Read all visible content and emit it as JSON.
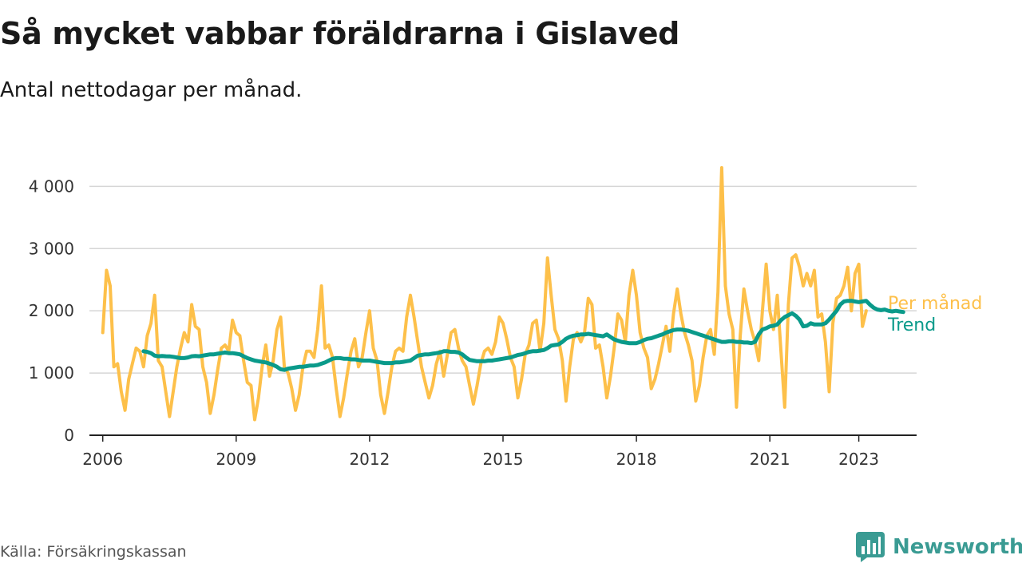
{
  "title": "Så mycket vabbar föräldrarna i Gislaved",
  "subtitle": "Antal nettodagar per månad.",
  "source": "Källa: Försäkringskassan",
  "brand": "Newsworthy",
  "colors": {
    "per_manad": "#fdc04a",
    "trend": "#0a9a8a",
    "brand": "#3a9b93",
    "grid": "#d6d6d6",
    "axis": "#222222"
  },
  "chart_data": {
    "type": "line",
    "title": "Så mycket vabbar föräldrarna i Gislaved",
    "subtitle": "Antal nettodagar per månad.",
    "xlabel": "",
    "ylabel": "",
    "xlim": [
      2005.7,
      2024.3
    ],
    "ylim": [
      0,
      4300
    ],
    "x_ticks": [
      2006,
      2009,
      2012,
      2015,
      2018,
      2021,
      2023
    ],
    "x_tick_labels": [
      "2006",
      "2009",
      "2012",
      "2015",
      "2018",
      "2021",
      "2023"
    ],
    "y_ticks": [
      0,
      1000,
      2000,
      3000,
      4000
    ],
    "y_tick_labels": [
      "0",
      "1 000",
      "2 000",
      "3 000",
      "4 000"
    ],
    "grid": true,
    "legend": "direct labels at line ends",
    "series": [
      {
        "name": "Per månad",
        "start": "2006-01",
        "values": [
          1650,
          2650,
          2400,
          1100,
          1150,
          700,
          400,
          900,
          1150,
          1400,
          1350,
          1100,
          1600,
          1800,
          2250,
          1200,
          1100,
          700,
          300,
          700,
          1100,
          1400,
          1650,
          1500,
          2100,
          1750,
          1700,
          1100,
          850,
          350,
          650,
          1050,
          1400,
          1450,
          1350,
          1850,
          1650,
          1600,
          1200,
          850,
          800,
          250,
          600,
          1100,
          1450,
          950,
          1200,
          1700,
          1900,
          1100,
          1000,
          750,
          400,
          650,
          1100,
          1350,
          1350,
          1250,
          1700,
          2400,
          1400,
          1450,
          1250,
          750,
          300,
          600,
          1000,
          1350,
          1550,
          1100,
          1250,
          1650,
          2000,
          1400,
          1200,
          650,
          350,
          700,
          1100,
          1350,
          1400,
          1350,
          1900,
          2250,
          1900,
          1500,
          1100,
          850,
          600,
          800,
          1150,
          1350,
          950,
          1300,
          1650,
          1700,
          1400,
          1200,
          1100,
          800,
          500,
          800,
          1150,
          1350,
          1400,
          1300,
          1500,
          1900,
          1800,
          1550,
          1250,
          1100,
          600,
          900,
          1300,
          1450,
          1800,
          1850,
          1350,
          1800,
          2850,
          2250,
          1700,
          1550,
          1200,
          550,
          1100,
          1550,
          1650,
          1500,
          1650,
          2200,
          2100,
          1400,
          1450,
          1100,
          600,
          950,
          1400,
          1950,
          1850,
          1500,
          2250,
          2650,
          2250,
          1650,
          1400,
          1250,
          750,
          900,
          1150,
          1450,
          1750,
          1350,
          1950,
          2350,
          1950,
          1650,
          1450,
          1200,
          550,
          800,
          1250,
          1600,
          1700,
          1300,
          2300,
          4300,
          2400,
          1950,
          1700,
          450,
          1600,
          2350,
          2000,
          1700,
          1500,
          1200,
          2000,
          2750,
          2000,
          1700,
          2250,
          1350,
          450,
          2100,
          2850,
          2900,
          2700,
          2400,
          2600,
          2400,
          2650,
          1900,
          1950,
          1500,
          700,
          1800,
          2200,
          2250,
          2400,
          2700,
          2000,
          2600,
          2750,
          1750,
          2000
        ]
      },
      {
        "name": "Trend",
        "start": "2006-12",
        "values": [
          1350,
          1340,
          1320,
          1280,
          1270,
          1275,
          1270,
          1268,
          1260,
          1250,
          1240,
          1240,
          1250,
          1270,
          1275,
          1270,
          1280,
          1290,
          1300,
          1300,
          1310,
          1320,
          1330,
          1320,
          1320,
          1310,
          1300,
          1270,
          1240,
          1220,
          1200,
          1190,
          1180,
          1170,
          1150,
          1130,
          1100,
          1060,
          1050,
          1070,
          1080,
          1090,
          1100,
          1100,
          1110,
          1120,
          1120,
          1130,
          1150,
          1170,
          1200,
          1230,
          1240,
          1240,
          1230,
          1230,
          1220,
          1220,
          1210,
          1200,
          1200,
          1200,
          1190,
          1180,
          1170,
          1160,
          1160,
          1160,
          1170,
          1170,
          1180,
          1190,
          1200,
          1240,
          1280,
          1290,
          1300,
          1300,
          1310,
          1320,
          1330,
          1350,
          1350,
          1340,
          1340,
          1330,
          1300,
          1250,
          1210,
          1200,
          1190,
          1190,
          1190,
          1200,
          1200,
          1210,
          1220,
          1230,
          1240,
          1250,
          1270,
          1290,
          1300,
          1320,
          1340,
          1350,
          1350,
          1360,
          1370,
          1400,
          1440,
          1450,
          1460,
          1500,
          1550,
          1580,
          1600,
          1610,
          1620,
          1620,
          1630,
          1620,
          1610,
          1600,
          1590,
          1620,
          1580,
          1540,
          1520,
          1500,
          1490,
          1480,
          1480,
          1480,
          1500,
          1530,
          1550,
          1560,
          1580,
          1600,
          1620,
          1650,
          1670,
          1690,
          1700,
          1700,
          1690,
          1680,
          1660,
          1640,
          1620,
          1600,
          1580,
          1560,
          1540,
          1520,
          1500,
          1500,
          1510,
          1510,
          1500,
          1500,
          1490,
          1490,
          1480,
          1500,
          1620,
          1700,
          1720,
          1750,
          1760,
          1780,
          1850,
          1900,
          1930,
          1960,
          1920,
          1860,
          1750,
          1760,
          1800,
          1780,
          1780,
          1780,
          1800,
          1860,
          1930,
          2000,
          2100,
          2150,
          2160,
          2160,
          2150,
          2140,
          2150,
          2160,
          2100,
          2050,
          2020,
          2010,
          2020,
          2000,
          1990,
          2000,
          1990,
          1980
        ]
      }
    ]
  }
}
